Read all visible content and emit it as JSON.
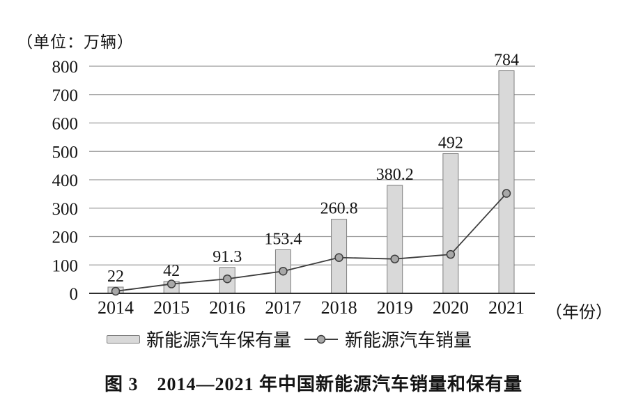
{
  "figure": {
    "unit_label": "（单位：万辆）",
    "x_axis_unit": "（年份）",
    "caption": "图 3　2014—2021 年中国新能源汽车销量和保有量"
  },
  "chart_data": {
    "type": "bar",
    "subtype": "bar-line-combo",
    "title": "图3 2014—2021年中国新能源汽车销量和保有量",
    "unit": "万辆",
    "xlabel": "（年份）",
    "ylabel": "（单位：万辆）",
    "categories": [
      "2014",
      "2015",
      "2016",
      "2017",
      "2018",
      "2019",
      "2020",
      "2021"
    ],
    "series": [
      {
        "name": "新能源汽车保有量",
        "type": "bar",
        "values": [
          22,
          42,
          91.3,
          153.4,
          260.8,
          380.2,
          492,
          784
        ],
        "value_labels": [
          "22",
          "42",
          "91.3",
          "153.4",
          "260.8",
          "380.2",
          "492",
          "784"
        ],
        "fill": "#d9d9d9",
        "stroke": "#7f7f7f"
      },
      {
        "name": "新能源汽车销量",
        "type": "line",
        "values": [
          7.5,
          33,
          51,
          78,
          126,
          121,
          137,
          352
        ],
        "color": "#3d3d3d",
        "marker_fill": "#a8a8a8"
      }
    ],
    "ylim": [
      0,
      800
    ],
    "ytick_step": 100,
    "yticks": [
      0,
      100,
      200,
      300,
      400,
      500,
      600,
      700,
      800
    ],
    "grid": true,
    "gridline_color": "#9b9b9b",
    "axis_color": "#2e2e2e",
    "legend_position": "bottom"
  }
}
